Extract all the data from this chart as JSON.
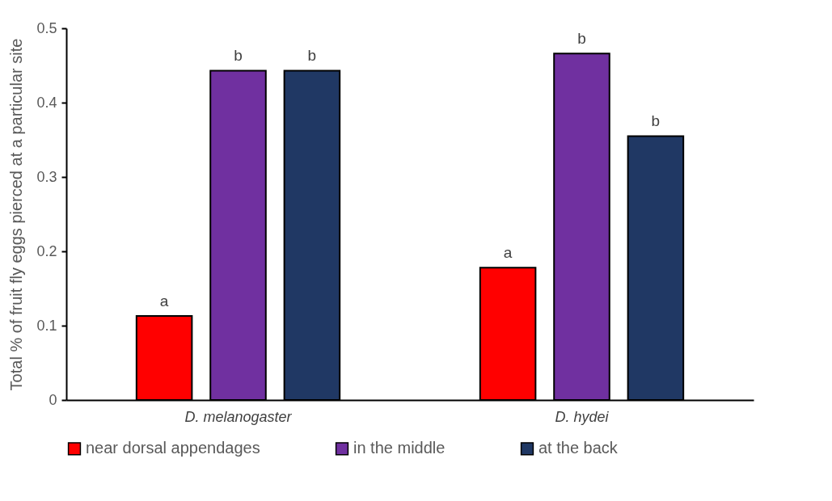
{
  "chart_data": {
    "type": "bar",
    "ylabel": "Total % of fruit fly eggs  pierced at a particular  site",
    "categories": [
      "D. melanogaster",
      "D. hydei"
    ],
    "series": [
      {
        "name": "near dorsal appendages",
        "color": "#ff0000",
        "values": [
          0.113,
          0.178
        ],
        "value_labels": [
          "a",
          "a"
        ]
      },
      {
        "name": "in the middle",
        "color": "#7030a0",
        "values": [
          0.443,
          0.466
        ],
        "value_labels": [
          "b",
          "b"
        ]
      },
      {
        "name": "at the back",
        "color": "#203864",
        "values": [
          0.443,
          0.355
        ],
        "value_labels": [
          "b",
          "b"
        ]
      }
    ],
    "ylim": [
      0,
      0.5
    ],
    "yticks": [
      0,
      0.1,
      0.2,
      0.3,
      0.4,
      0.5
    ],
    "grid": false,
    "legend": "bottom"
  }
}
